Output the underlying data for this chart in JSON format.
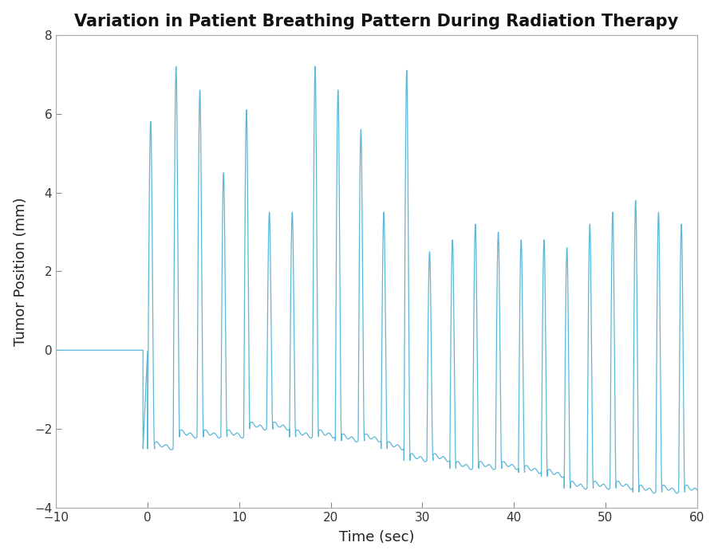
{
  "title": "Variation in Patient Breathing Pattern During Radiation Therapy",
  "xlabel": "Time (sec)",
  "ylabel": "Tumor Position (mm)",
  "xlim": [
    -10,
    60
  ],
  "ylim": [
    -4,
    8
  ],
  "xticks": [
    -10,
    0,
    10,
    20,
    30,
    40,
    50,
    60
  ],
  "yticks": [
    -4,
    -2,
    0,
    2,
    4,
    6,
    8
  ],
  "line_color": "#5ab8d8",
  "background_color": "#ffffff",
  "title_fontsize": 15,
  "label_fontsize": 13,
  "tick_fontsize": 11,
  "breath_cycles": [
    {
      "t_start": 0.0,
      "t_end": 2.8,
      "peak": 5.8,
      "trough": -2.5
    },
    {
      "t_start": 2.8,
      "t_end": 5.4,
      "peak": 7.2,
      "trough": -2.2
    },
    {
      "t_start": 5.4,
      "t_end": 8.0,
      "peak": 6.6,
      "trough": -2.2
    },
    {
      "t_start": 8.0,
      "t_end": 10.5,
      "peak": 4.5,
      "trough": -2.2
    },
    {
      "t_start": 10.5,
      "t_end": 13.0,
      "peak": 6.1,
      "trough": -2.0
    },
    {
      "t_start": 13.0,
      "t_end": 15.5,
      "peak": 3.5,
      "trough": -2.0
    },
    {
      "t_start": 15.5,
      "t_end": 18.0,
      "peak": 3.5,
      "trough": -2.2
    },
    {
      "t_start": 18.0,
      "t_end": 20.5,
      "peak": 7.2,
      "trough": -2.2
    },
    {
      "t_start": 20.5,
      "t_end": 23.0,
      "peak": 6.6,
      "trough": -2.3
    },
    {
      "t_start": 23.0,
      "t_end": 25.5,
      "peak": 5.6,
      "trough": -2.3
    },
    {
      "t_start": 25.5,
      "t_end": 28.0,
      "peak": 3.5,
      "trough": -2.5
    },
    {
      "t_start": 28.0,
      "t_end": 30.5,
      "peak": 7.1,
      "trough": -2.8
    },
    {
      "t_start": 30.5,
      "t_end": 33.0,
      "peak": 2.5,
      "trough": -2.8
    },
    {
      "t_start": 33.0,
      "t_end": 35.5,
      "peak": 2.8,
      "trough": -3.0
    },
    {
      "t_start": 35.5,
      "t_end": 38.0,
      "peak": 3.2,
      "trough": -3.0
    },
    {
      "t_start": 38.0,
      "t_end": 40.5,
      "peak": 3.0,
      "trough": -3.0
    },
    {
      "t_start": 40.5,
      "t_end": 43.0,
      "peak": 2.8,
      "trough": -3.1
    },
    {
      "t_start": 43.0,
      "t_end": 45.5,
      "peak": 2.8,
      "trough": -3.2
    },
    {
      "t_start": 45.5,
      "t_end": 48.0,
      "peak": 2.6,
      "trough": -3.5
    },
    {
      "t_start": 48.0,
      "t_end": 50.5,
      "peak": 3.2,
      "trough": -3.5
    },
    {
      "t_start": 50.5,
      "t_end": 53.0,
      "peak": 3.5,
      "trough": -3.5
    },
    {
      "t_start": 53.0,
      "t_end": 55.5,
      "peak": 3.8,
      "trough": -3.6
    },
    {
      "t_start": 55.5,
      "t_end": 58.0,
      "peak": 3.5,
      "trough": -3.6
    },
    {
      "t_start": 58.0,
      "t_end": 60.5,
      "peak": 3.2,
      "trough": -3.6
    }
  ]
}
